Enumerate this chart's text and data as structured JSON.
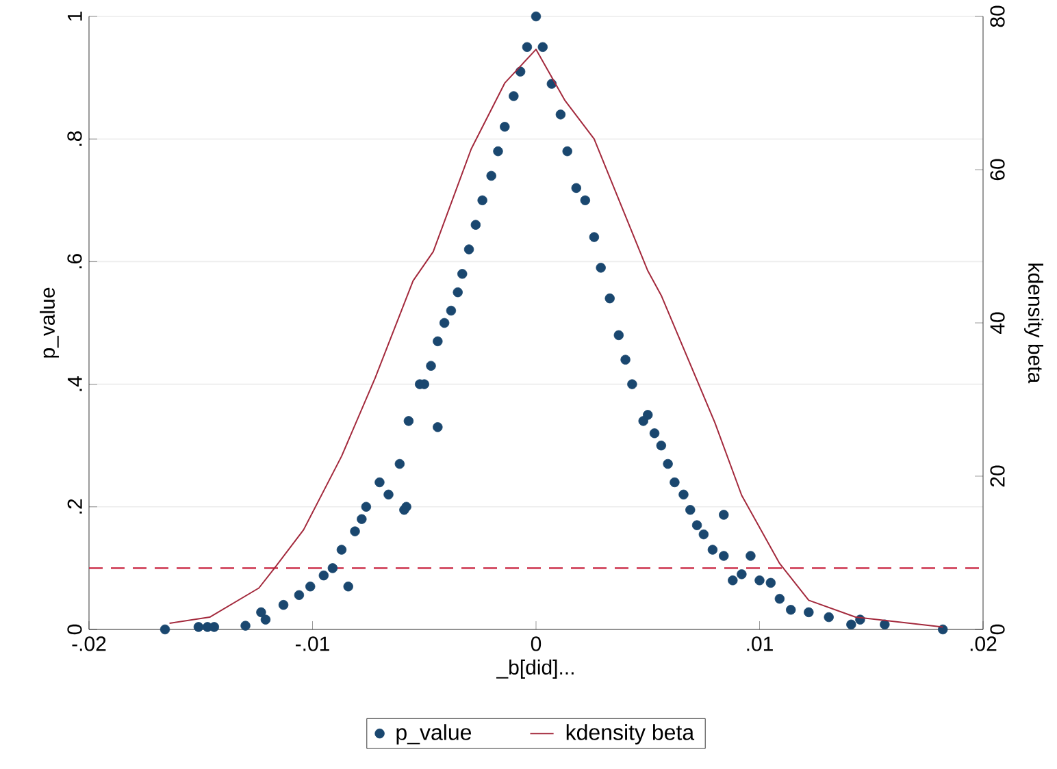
{
  "chart_data": {
    "type": "scatter",
    "xlabel": "_b[did]...",
    "ylabel": "p_value",
    "y2label": "kdensity beta",
    "xlim": [
      -0.02,
      0.02
    ],
    "xticks": [
      {
        "value": -0.02,
        "label": "-.02"
      },
      {
        "value": -0.01,
        "label": "-.01"
      },
      0,
      {
        "value": 0.01,
        "label": ".01"
      },
      {
        "value": 0.02,
        "label": ".02"
      }
    ],
    "ylim": [
      0,
      1
    ],
    "yticks": [
      0,
      {
        "value": 0.2,
        "label": ".2"
      },
      {
        "value": 0.4,
        "label": ".4"
      },
      {
        "value": 0.6,
        "label": ".6"
      },
      {
        "value": 0.8,
        "label": ".8"
      },
      1
    ],
    "y2lim": [
      0,
      80
    ],
    "y2ticks": [
      0,
      20,
      40,
      60,
      80
    ],
    "grid": "y",
    "legend": "bottom",
    "ref_lines": [
      {
        "axis": "y",
        "value": 0.1,
        "color": "#c8203c",
        "line_style": "dashed"
      }
    ],
    "series": [
      {
        "name": "p_value",
        "marker": "circle",
        "color": "#1a476f",
        "x": [
          -0.0166,
          -0.0151,
          -0.0147,
          -0.0144,
          -0.013,
          -0.0123,
          -0.0121,
          -0.0113,
          -0.0106,
          -0.0101,
          -0.0095,
          -0.0091,
          -0.0087,
          -0.0084,
          -0.0081,
          -0.0078,
          -0.0076,
          -0.007,
          -0.0066,
          -0.0061,
          -0.0059,
          -0.0058,
          -0.0057,
          -0.0052,
          -0.005,
          -0.0047,
          -0.0044,
          -0.0044,
          -0.0041,
          -0.0038,
          -0.0035,
          -0.0033,
          -0.003,
          -0.0027,
          -0.0024,
          -0.002,
          -0.0017,
          -0.0014,
          -0.001,
          -0.0007,
          -0.0004,
          0.0,
          0.0003,
          0.0007,
          0.0011,
          0.0014,
          0.0018,
          0.0022,
          0.0026,
          0.0029,
          0.0033,
          0.0037,
          0.004,
          0.0043,
          0.0048,
          0.005,
          0.0053,
          0.0056,
          0.0059,
          0.0062,
          0.0066,
          0.0069,
          0.0072,
          0.0075,
          0.0079,
          0.0084,
          0.0084,
          0.0088,
          0.0092,
          0.0096,
          0.01,
          0.0105,
          0.0109,
          0.0114,
          0.0122,
          0.0131,
          0.0141,
          0.0145,
          0.0156,
          0.0182
        ],
        "values": [
          0.0,
          0.004,
          0.004,
          0.004,
          0.006,
          0.028,
          0.016,
          0.04,
          0.056,
          0.07,
          0.088,
          0.1,
          0.13,
          0.07,
          0.16,
          0.18,
          0.2,
          0.24,
          0.22,
          0.27,
          0.195,
          0.2,
          0.34,
          0.4,
          0.4,
          0.43,
          0.47,
          0.33,
          0.5,
          0.52,
          0.55,
          0.58,
          0.62,
          0.66,
          0.7,
          0.74,
          0.78,
          0.82,
          0.87,
          0.91,
          0.95,
          1.0,
          0.95,
          0.89,
          0.84,
          0.78,
          0.72,
          0.7,
          0.64,
          0.59,
          0.54,
          0.48,
          0.44,
          0.4,
          0.34,
          0.35,
          0.32,
          0.3,
          0.27,
          0.24,
          0.22,
          0.195,
          0.17,
          0.155,
          0.13,
          0.187,
          0.12,
          0.08,
          0.09,
          0.12,
          0.08,
          0.076,
          0.05,
          0.032,
          0.028,
          0.02,
          0.008,
          0.016,
          0.008,
          0.0
        ]
      },
      {
        "name": "kdensity beta",
        "type": "line",
        "axis": "y2",
        "marker": "none",
        "line_style": "solid",
        "color": "#a3293c",
        "x": [
          -0.0164,
          -0.0146,
          -0.0124,
          -0.0117,
          -0.0104,
          -0.0087,
          -0.0072,
          -0.0055,
          -0.0046,
          -0.0029,
          -0.0014,
          0.0,
          0.0013,
          0.0026,
          0.005,
          0.0056,
          0.008,
          0.0092,
          0.0109,
          0.0122,
          0.0143,
          0.0182
        ],
        "values": [
          0.8,
          1.6,
          5.4,
          8,
          13,
          22.6,
          32.8,
          45.5,
          49.3,
          62.7,
          71.3,
          75.7,
          69,
          64,
          46.8,
          43.6,
          27,
          17.5,
          8.6,
          3.8,
          1.6,
          0.3
        ]
      }
    ]
  }
}
